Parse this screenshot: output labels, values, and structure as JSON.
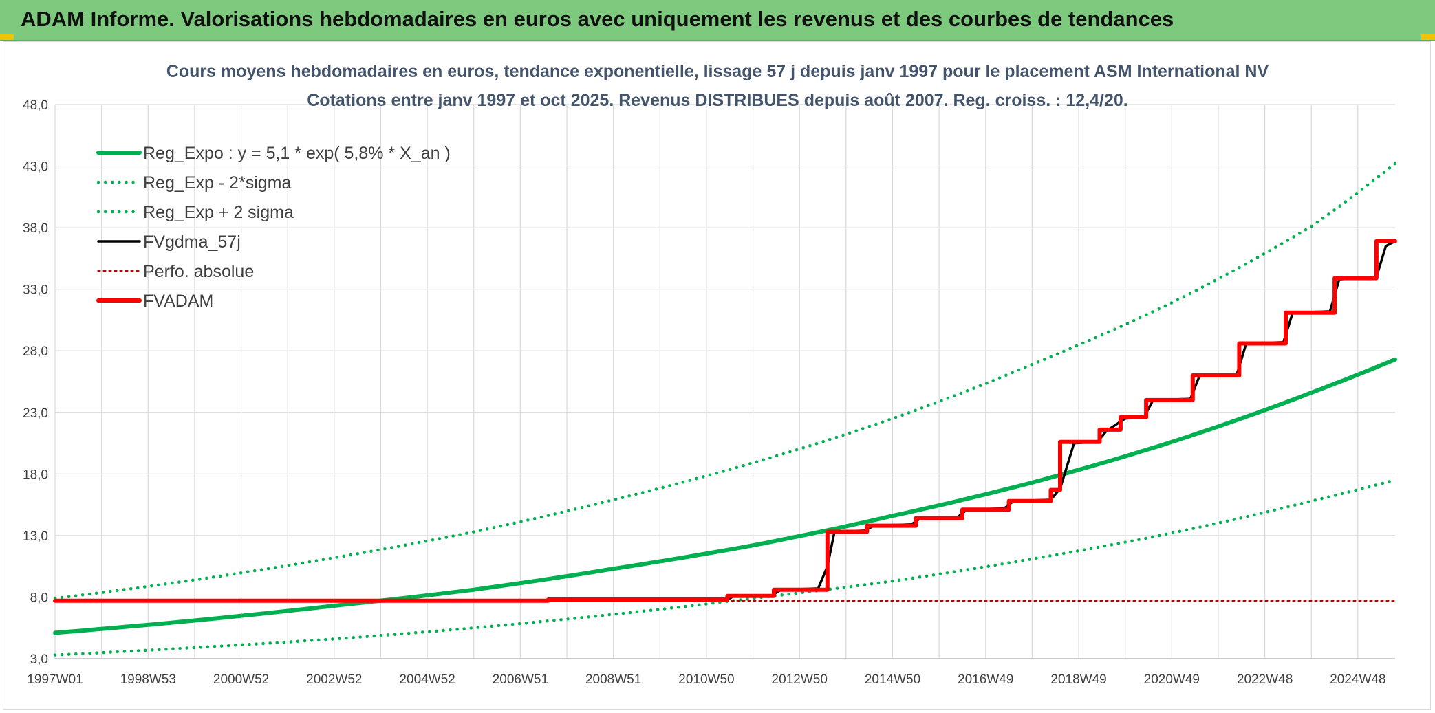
{
  "banner": {
    "title": "ADAM Informe. Valorisations hebdomadaires en euros avec uniquement les revenus et des courbes de tendances"
  },
  "colors": {
    "banner_bg": "#7dc97d",
    "trend_green": "#00b050",
    "fv_black": "#000000",
    "adam_red": "#ff0000",
    "grid": "#d9d9d9"
  },
  "chart_data": {
    "type": "line",
    "title": "Cours moyens hebdomadaires en euros, tendance exponentielle, lissage 57 j depuis janv 1997 pour le placement ASM International NV",
    "subtitle": "Cotations entre janv 1997 et oct 2025. Revenus DISTRIBUES depuis août 2007. Reg. croiss. : 12,4/20.",
    "xlabel": "",
    "ylabel": "",
    "x_range": [
      1997.0,
      2025.8
    ],
    "ylim": [
      3.0,
      48.0
    ],
    "y_ticks": [
      "3,0",
      "8,0",
      "13,0",
      "18,0",
      "23,0",
      "28,0",
      "33,0",
      "38,0",
      "43,0",
      "48,0"
    ],
    "x_ticks": [
      {
        "label": "1997W01",
        "x": 1997.0
      },
      {
        "label": "1998W53",
        "x": 1999.0
      },
      {
        "label": "2000W52",
        "x": 2001.0
      },
      {
        "label": "2002W52",
        "x": 2003.0
      },
      {
        "label": "2004W52",
        "x": 2005.0
      },
      {
        "label": "2006W51",
        "x": 2007.0
      },
      {
        "label": "2008W51",
        "x": 2009.0
      },
      {
        "label": "2010W50",
        "x": 2011.0
      },
      {
        "label": "2012W50",
        "x": 2013.0
      },
      {
        "label": "2014W50",
        "x": 2015.0
      },
      {
        "label": "2016W49",
        "x": 2017.0
      },
      {
        "label": "2018W49",
        "x": 2019.0
      },
      {
        "label": "2020W49",
        "x": 2021.0
      },
      {
        "label": "2022W48",
        "x": 2023.0
      },
      {
        "label": "2024W48",
        "x": 2025.0
      }
    ],
    "grid": true,
    "legend_position": "top-left",
    "series": [
      {
        "name": "Reg_Expo : y = 5,1 * exp( 5,8% *  X_an )",
        "style": "solid",
        "color": "#00b050",
        "x": [
          1997.0,
          2000.0,
          2003.0,
          2006.0,
          2009.0,
          2012.0,
          2015.0,
          2018.0,
          2021.0,
          2024.0,
          2025.8
        ],
        "y": [
          5.1,
          6.1,
          7.3,
          8.6,
          10.3,
          12.2,
          14.6,
          17.3,
          20.6,
          24.6,
          27.3
        ]
      },
      {
        "name": "Reg_Exp - 2*sigma",
        "style": "dotted",
        "color": "#00b050",
        "x": [
          1997.0,
          2000.0,
          2003.0,
          2006.0,
          2009.0,
          2012.0,
          2015.0,
          2018.0,
          2021.0,
          2024.0,
          2025.8
        ],
        "y": [
          3.3,
          3.9,
          4.6,
          5.5,
          6.6,
          7.9,
          9.3,
          11.1,
          13.2,
          15.8,
          17.5
        ]
      },
      {
        "name": "Reg_Exp + 2 sigma",
        "style": "dotted",
        "color": "#00b050",
        "x": [
          1997.0,
          2000.0,
          2003.0,
          2006.0,
          2009.0,
          2012.0,
          2015.0,
          2018.0,
          2021.0,
          2024.0,
          2025.8
        ],
        "y": [
          7.9,
          9.4,
          11.2,
          13.3,
          15.9,
          18.9,
          22.5,
          26.9,
          31.9,
          38.1,
          43.2
        ]
      },
      {
        "name": "FVgdma_57j",
        "style": "solid",
        "color": "#000000",
        "x": [
          1997.0,
          2007.6,
          2011.4,
          2011.6,
          2012.4,
          2012.6,
          2013.4,
          2013.6,
          2013.75,
          2014.4,
          2014.6,
          2015.4,
          2015.6,
          2016.4,
          2016.6,
          2017.4,
          2017.6,
          2018.4,
          2018.6,
          2018.9,
          2019.4,
          2019.6,
          2020.0,
          2020.4,
          2020.6,
          2021.4,
          2021.6,
          2022.4,
          2022.6,
          2023.4,
          2023.6,
          2024.4,
          2024.6,
          2025.4,
          2025.6,
          2025.8
        ],
        "y": [
          7.7,
          7.7,
          7.7,
          8.1,
          8.1,
          8.6,
          8.7,
          10.5,
          13.3,
          13.4,
          13.8,
          13.9,
          14.4,
          14.5,
          15.1,
          15.2,
          15.8,
          15.9,
          16.8,
          20.5,
          20.6,
          21.5,
          22.5,
          22.6,
          24.0,
          24.1,
          26.0,
          26.1,
          28.6,
          28.7,
          31.1,
          31.2,
          33.8,
          34.0,
          36.5,
          36.9
        ]
      },
      {
        "name": "Perfo. absolue",
        "style": "dotted",
        "color": "#c00000",
        "x": [
          1997.0,
          2025.8
        ],
        "y": [
          7.7,
          7.7
        ]
      },
      {
        "name": "FVADAM",
        "style": "solid",
        "color": "#ff0000",
        "x": [
          1997.0,
          2007.6,
          2007.6,
          2011.45,
          2011.45,
          2012.45,
          2012.45,
          2013.6,
          2013.6,
          2014.45,
          2014.45,
          2015.5,
          2015.5,
          2016.5,
          2016.5,
          2017.5,
          2017.5,
          2018.4,
          2018.4,
          2018.6,
          2018.6,
          2019.45,
          2019.45,
          2019.9,
          2019.9,
          2020.45,
          2020.45,
          2021.45,
          2021.45,
          2022.45,
          2022.45,
          2023.45,
          2023.45,
          2024.5,
          2024.5,
          2025.4,
          2025.4,
          2025.8
        ],
        "y": [
          7.7,
          7.7,
          7.8,
          7.8,
          8.1,
          8.1,
          8.6,
          8.6,
          13.3,
          13.3,
          13.8,
          13.8,
          14.4,
          14.4,
          15.1,
          15.1,
          15.8,
          15.8,
          16.7,
          16.7,
          20.6,
          20.6,
          21.6,
          21.6,
          22.6,
          22.6,
          24.0,
          24.0,
          26.0,
          26.0,
          28.6,
          28.6,
          31.1,
          31.1,
          33.9,
          33.9,
          36.9,
          36.9
        ]
      }
    ]
  }
}
